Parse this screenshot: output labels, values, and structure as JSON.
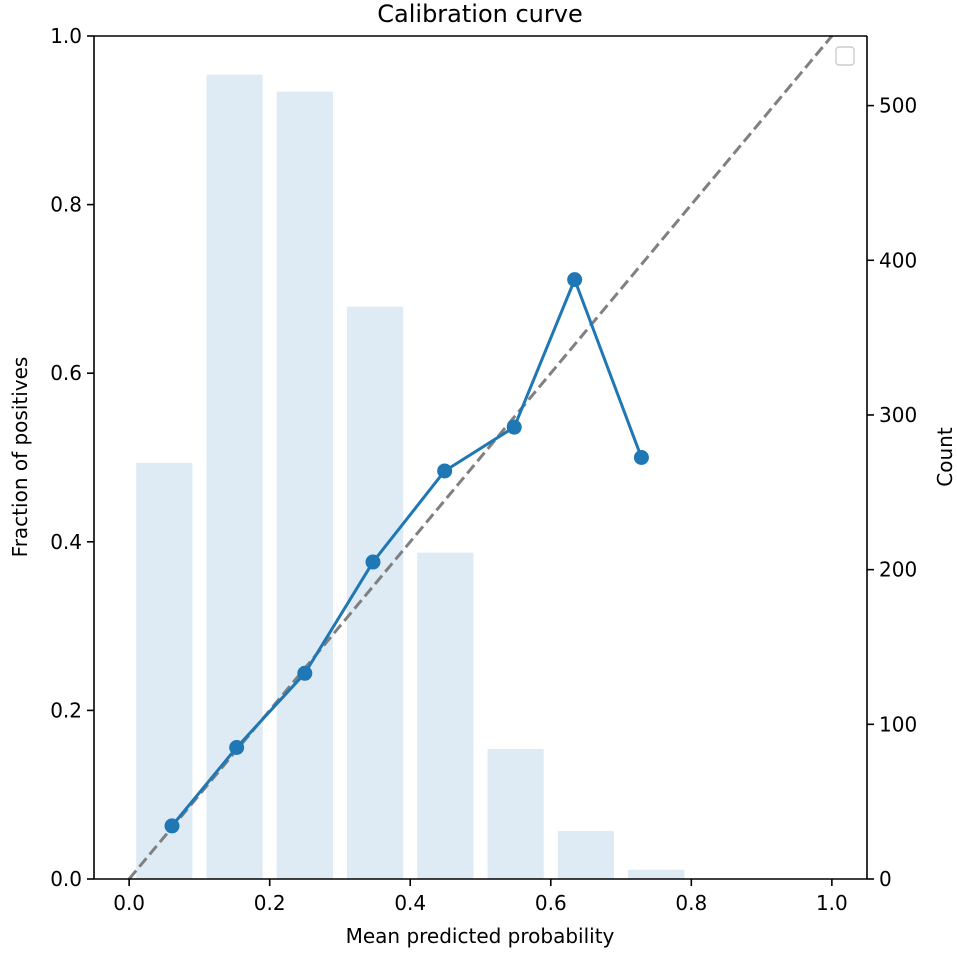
{
  "chart_data": {
    "type": "line",
    "title": "Calibration curve",
    "xlabel": "Mean predicted probability",
    "ylabel": "Fraction of positives",
    "y2label": "Count",
    "xlim": [
      -0.05,
      1.05
    ],
    "ylim": [
      0,
      1.0
    ],
    "y2lim": [
      0,
      545
    ],
    "xticks": [
      "0.0",
      "0.2",
      "0.4",
      "0.6",
      "0.8",
      "1.0"
    ],
    "yticks": [
      "0.0",
      "0.2",
      "0.4",
      "0.6",
      "0.8",
      "1.0"
    ],
    "y2ticks": [
      "0",
      "100",
      "200",
      "300",
      "400",
      "500"
    ],
    "grid": false,
    "legend": "top-right (empty)",
    "series": [
      {
        "type": "line",
        "color": "#1f77b4",
        "x": [
          0.061,
          0.153,
          0.25,
          0.347,
          0.449,
          0.548,
          0.634,
          0.729
        ],
        "y": [
          0.063,
          0.156,
          0.244,
          0.376,
          0.484,
          0.536,
          0.711,
          0.5
        ]
      },
      {
        "type": "reference",
        "style": "dashed",
        "color": "#808080",
        "x": [
          0,
          1
        ],
        "y": [
          0,
          1
        ]
      },
      {
        "type": "bar",
        "axis": "right",
        "color": "#1f77b4",
        "opacity": 0.15,
        "bin_centers": [
          0.05,
          0.15,
          0.25,
          0.35,
          0.45,
          0.55,
          0.65,
          0.75
        ],
        "counts": [
          269,
          520,
          509,
          370,
          211,
          84,
          31,
          6
        ]
      }
    ]
  }
}
